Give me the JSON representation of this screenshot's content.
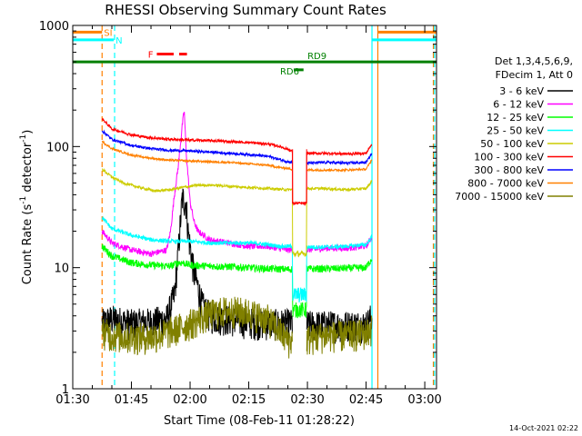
{
  "chart_data": {
    "type": "line",
    "title": "RHESSI Observing Summary Count Rates",
    "xlabel": "Start Time (08-Feb-11 01:28:22)",
    "ylabel_main": "Count Rate (s",
    "ylabel_sup1": "-1",
    "ylabel_mid": " detector",
    "ylabel_sup2": "-1",
    "ylabel_end": ")",
    "footer": "14-Oct-2021 02:22",
    "x_axis_minutes": [
      90,
      183
    ],
    "x_ticks": [
      {
        "label": "01:30",
        "minute": 90
      },
      {
        "label": "01:45",
        "minute": 105
      },
      {
        "label": "02:00",
        "minute": 120
      },
      {
        "label": "02:15",
        "minute": 135
      },
      {
        "label": "02:30",
        "minute": 150
      },
      {
        "label": "02:45",
        "minute": 165
      },
      {
        "label": "03:00",
        "minute": 180
      }
    ],
    "y_scale": "log",
    "ylim": [
      1,
      1000
    ],
    "y_ticks": [
      {
        "label": "1",
        "value": 1
      },
      {
        "label": "10",
        "value": 10
      },
      {
        "label": "100",
        "value": 100
      },
      {
        "label": "1000",
        "value": 1000
      }
    ],
    "legend_header_1": "Det 1,3,4,5,6,9,",
    "legend_header_2": "FDecim 1, Att 0",
    "legend_position": "right",
    "series": [
      {
        "name": "3 - 6 keV",
        "color": "#000000",
        "noise": 0.3,
        "points": [
          [
            97.5,
            3.5
          ],
          [
            100,
            3.8
          ],
          [
            105,
            3.5
          ],
          [
            110,
            3.6
          ],
          [
            114,
            3.8
          ],
          [
            116,
            6
          ],
          [
            117,
            14
          ],
          [
            118,
            38
          ],
          [
            119,
            34
          ],
          [
            119.5,
            20
          ],
          [
            120,
            15
          ],
          [
            121,
            9
          ],
          [
            122,
            7
          ],
          [
            123,
            5
          ],
          [
            125,
            4
          ],
          [
            130,
            3.8
          ],
          [
            135,
            3.6
          ],
          [
            140,
            3.5
          ],
          [
            145,
            3.5
          ],
          [
            150,
            3.4
          ],
          [
            155,
            3.4
          ],
          [
            160,
            3.4
          ],
          [
            165,
            3.4
          ],
          [
            166.5,
            4
          ]
        ]
      },
      {
        "name": "6 - 12 keV",
        "color": "#ff00ff",
        "noise": 0.06,
        "points": [
          [
            97.5,
            20
          ],
          [
            100,
            16
          ],
          [
            105,
            14
          ],
          [
            110,
            13
          ],
          [
            114,
            14
          ],
          [
            115,
            20
          ],
          [
            116,
            40
          ],
          [
            117,
            70
          ],
          [
            118,
            150
          ],
          [
            118.5,
            200
          ],
          [
            119,
            90
          ],
          [
            120,
            35
          ],
          [
            121,
            24
          ],
          [
            122,
            20
          ],
          [
            125,
            17
          ],
          [
            130,
            16
          ],
          [
            135,
            15
          ],
          [
            140,
            15
          ],
          [
            145,
            14
          ],
          [
            150,
            14
          ],
          [
            155,
            14.5
          ],
          [
            160,
            14.5
          ],
          [
            165,
            15
          ],
          [
            166.5,
            18
          ]
        ]
      },
      {
        "name": "12 - 25 keV",
        "color": "#00ff00",
        "noise": 0.07,
        "points": [
          [
            97.5,
            15
          ],
          [
            100,
            12.5
          ],
          [
            105,
            11
          ],
          [
            110,
            10.5
          ],
          [
            115,
            10.3
          ],
          [
            117,
            11
          ],
          [
            118,
            11
          ],
          [
            120,
            10.5
          ],
          [
            125,
            10.3
          ],
          [
            130,
            10.2
          ],
          [
            135,
            10
          ],
          [
            140,
            9.8
          ],
          [
            145,
            9.7
          ],
          [
            150,
            9.8
          ],
          [
            155,
            9.8
          ],
          [
            160,
            9.9
          ],
          [
            165,
            10
          ],
          [
            166.5,
            12
          ]
        ]
      },
      {
        "name": "25 - 50 keV",
        "color": "#00ffff",
        "noise": 0.04,
        "points": [
          [
            97.5,
            26
          ],
          [
            100,
            21
          ],
          [
            105,
            18.5
          ],
          [
            110,
            17
          ],
          [
            115,
            16.5
          ],
          [
            120,
            16.5
          ],
          [
            125,
            16
          ],
          [
            130,
            16
          ],
          [
            135,
            16
          ],
          [
            140,
            15.5
          ],
          [
            143,
            15
          ],
          [
            145,
            15
          ],
          [
            150,
            14.8
          ],
          [
            155,
            14.8
          ],
          [
            160,
            15
          ],
          [
            165,
            15.5
          ],
          [
            166.5,
            18
          ]
        ]
      },
      {
        "name": "50 - 100 keV",
        "color": "#cccc00",
        "noise": 0.025,
        "points": [
          [
            97.5,
            65
          ],
          [
            100,
            56
          ],
          [
            103,
            50
          ],
          [
            107,
            46
          ],
          [
            111,
            43
          ],
          [
            115,
            44
          ],
          [
            118,
            46
          ],
          [
            122,
            48
          ],
          [
            126,
            48
          ],
          [
            130,
            47
          ],
          [
            135,
            46
          ],
          [
            140,
            45
          ],
          [
            145,
            44
          ],
          [
            150,
            45
          ],
          [
            155,
            45
          ],
          [
            160,
            44
          ],
          [
            165,
            45
          ],
          [
            166.5,
            52
          ]
        ]
      },
      {
        "name": "100 - 300 keV",
        "color": "#ff0000",
        "noise": 0.025,
        "points": [
          [
            97.5,
            170
          ],
          [
            100,
            140
          ],
          [
            105,
            125
          ],
          [
            110,
            118
          ],
          [
            115,
            115
          ],
          [
            120,
            113
          ],
          [
            125,
            112
          ],
          [
            130,
            110
          ],
          [
            135,
            108
          ],
          [
            140,
            105
          ],
          [
            143,
            100
          ],
          [
            145,
            95
          ],
          [
            147,
            88
          ],
          [
            150,
            88
          ],
          [
            155,
            88
          ],
          [
            160,
            87
          ],
          [
            165,
            88
          ],
          [
            166.5,
            105
          ]
        ]
      },
      {
        "name": "300 - 800 keV",
        "color": "#0000ff",
        "noise": 0.025,
        "points": [
          [
            97.5,
            135
          ],
          [
            100,
            115
          ],
          [
            105,
            102
          ],
          [
            110,
            96
          ],
          [
            115,
            93
          ],
          [
            120,
            92
          ],
          [
            125,
            90
          ],
          [
            130,
            88
          ],
          [
            135,
            86
          ],
          [
            140,
            83
          ],
          [
            143,
            78
          ],
          [
            145,
            75
          ],
          [
            147,
            73
          ],
          [
            150,
            73
          ],
          [
            155,
            74
          ],
          [
            160,
            73
          ],
          [
            165,
            74
          ],
          [
            166.5,
            88
          ]
        ]
      },
      {
        "name": "800 - 7000 keV",
        "color": "#ff8000",
        "noise": 0.02,
        "points": [
          [
            97.5,
            110
          ],
          [
            100,
            96
          ],
          [
            105,
            85
          ],
          [
            110,
            80
          ],
          [
            115,
            77
          ],
          [
            120,
            76
          ],
          [
            125,
            75
          ],
          [
            130,
            74
          ],
          [
            135,
            72
          ],
          [
            140,
            70
          ],
          [
            143,
            67
          ],
          [
            145,
            66
          ],
          [
            147,
            64
          ],
          [
            150,
            64
          ],
          [
            155,
            64
          ],
          [
            160,
            64
          ],
          [
            165,
            65
          ],
          [
            166.5,
            78
          ]
        ]
      },
      {
        "name": "7000 - 15000 keV",
        "color": "#808000",
        "noise": 0.3,
        "points": [
          [
            97.5,
            3
          ],
          [
            100,
            2.8
          ],
          [
            105,
            2.7
          ],
          [
            110,
            2.7
          ],
          [
            115,
            3
          ],
          [
            120,
            3.5
          ],
          [
            125,
            4.2
          ],
          [
            130,
            4.5
          ],
          [
            135,
            4.3
          ],
          [
            140,
            3.8
          ],
          [
            143,
            3
          ],
          [
            145,
            2.5
          ],
          [
            150,
            2.6
          ],
          [
            155,
            2.8
          ],
          [
            160,
            2.8
          ],
          [
            165,
            2.9
          ],
          [
            166.5,
            3.2
          ]
        ]
      }
    ],
    "gap": {
      "start": 146.2,
      "end": 149.8
    },
    "attenuator_segment": [
      [
        146.2,
        34
      ],
      [
        149.8,
        34
      ]
    ],
    "markers": [
      {
        "label": "SI",
        "color": "#ff8000",
        "left": [
          90,
          97.5
        ],
        "right": [
          168,
          183
        ],
        "y": 880
      },
      {
        "label": "N",
        "color": "#00ffff",
        "left": [
          90,
          100.5
        ],
        "right": [
          166.5,
          183
        ],
        "y": 760
      },
      {
        "label": "F",
        "color": "#ff0000",
        "segments": [
          [
            111.5,
            115.8
          ],
          [
            117.2,
            119.2
          ]
        ],
        "y": 580
      },
      {
        "label": "RD9",
        "color": "#008000",
        "segments": [
          [
            90,
            183
          ]
        ],
        "y": 500,
        "label_minute": 150
      },
      {
        "label": "RD6",
        "color": "#008000",
        "segments": [
          [
            146.5,
            149
          ]
        ],
        "y": 430,
        "label_minute": 143
      }
    ],
    "vlines": [
      {
        "minute": 97.5,
        "color": "#ff8000",
        "dash": true
      },
      {
        "minute": 100.7,
        "color": "#00ffff",
        "dash": true
      },
      {
        "minute": 166.5,
        "color": "#00ffff",
        "dash": false
      },
      {
        "minute": 168.0,
        "color": "#ff8000",
        "dash": false
      },
      {
        "minute": 182.2,
        "color": "#ff8000",
        "dash": true
      },
      {
        "minute": 182.5,
        "color": "#00ffff",
        "dash": true
      }
    ]
  }
}
